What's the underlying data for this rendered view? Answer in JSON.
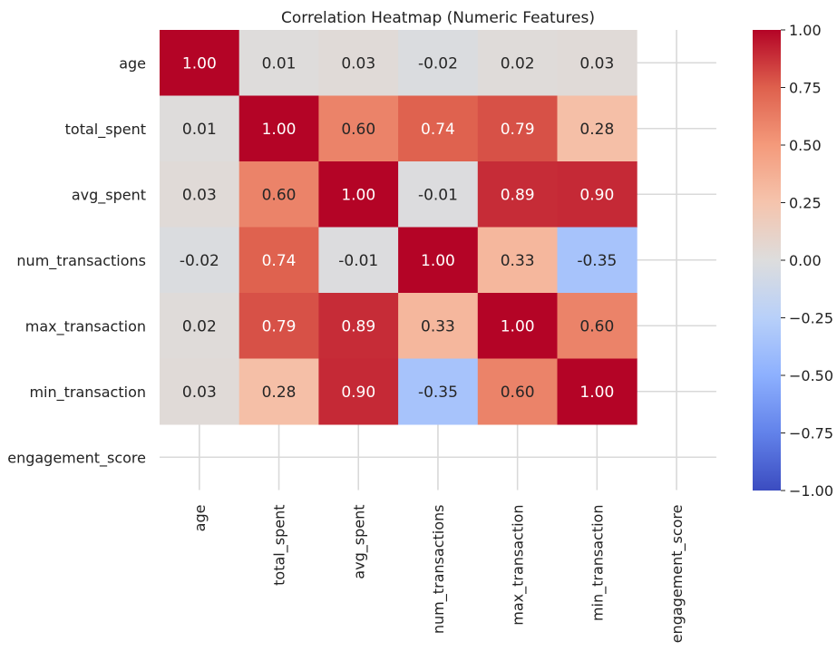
{
  "chart_data": {
    "type": "heatmap",
    "title": "Correlation Heatmap (Numeric Features)",
    "xlabel": "",
    "ylabel": "",
    "row_labels": [
      "age",
      "total_spent",
      "avg_spent",
      "num_transactions",
      "max_transaction",
      "min_transaction",
      "engagement_score"
    ],
    "col_labels": [
      "age",
      "total_spent",
      "avg_spent",
      "num_transactions",
      "max_transaction",
      "min_transaction",
      "engagement_score"
    ],
    "values": [
      [
        1.0,
        0.01,
        0.03,
        -0.02,
        0.02,
        0.03,
        null
      ],
      [
        0.01,
        1.0,
        0.6,
        0.74,
        0.79,
        0.28,
        null
      ],
      [
        0.03,
        0.6,
        1.0,
        -0.01,
        0.89,
        0.9,
        null
      ],
      [
        -0.02,
        0.74,
        -0.01,
        1.0,
        0.33,
        -0.35,
        null
      ],
      [
        0.02,
        0.79,
        0.89,
        0.33,
        1.0,
        0.6,
        null
      ],
      [
        0.03,
        0.28,
        0.9,
        -0.35,
        0.6,
        1.0,
        null
      ],
      [
        null,
        null,
        null,
        null,
        null,
        null,
        null
      ]
    ],
    "annotation_format": "0.00",
    "colormap": "coolwarm",
    "colorbar": {
      "vmin": -1.0,
      "vmax": 1.0,
      "ticks": [
        1.0,
        0.75,
        0.5,
        0.25,
        0.0,
        -0.25,
        -0.5,
        -0.75,
        -1.0
      ],
      "tick_labels": [
        "1.00",
        "0.75",
        "0.50",
        "0.25",
        "0.00",
        "−0.25",
        "−0.50",
        "−0.75",
        "−1.00"
      ]
    },
    "grid": true,
    "background": "#ffffff",
    "grid_color": "#d9d9d9"
  }
}
